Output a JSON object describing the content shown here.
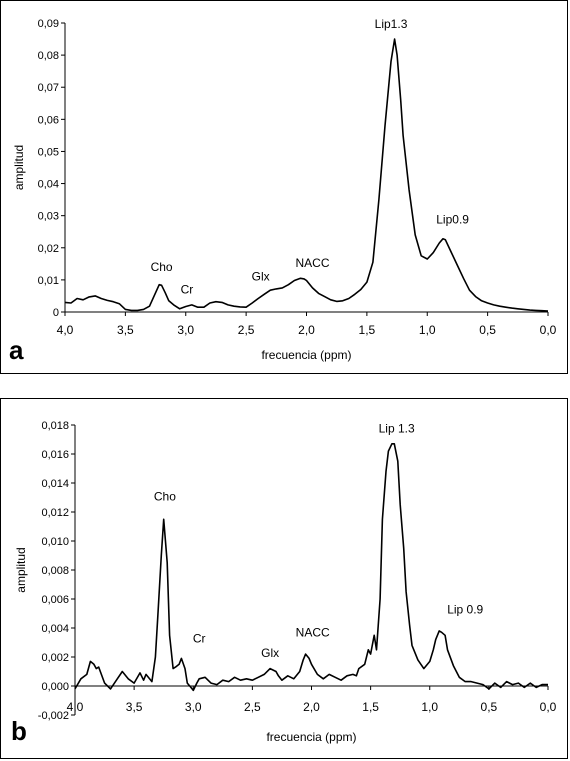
{
  "chart_data": [
    {
      "type": "line",
      "panel_label": "a",
      "xlabel": "frecuencia (ppm)",
      "ylabel": "amplitud",
      "xlim": [
        4.0,
        0.0
      ],
      "ylim": [
        0,
        0.09
      ],
      "x_ticks": [
        "4,0",
        "3,5",
        "3,0",
        "2,5",
        "2,0",
        "1,5",
        "1,0",
        "0,5",
        "0,0"
      ],
      "y_ticks": [
        "0",
        "0,01",
        "0,02",
        "0,03",
        "0,04",
        "0,05",
        "0,06",
        "0,07",
        "0,08",
        "0,09"
      ],
      "annotations": [
        {
          "text": "Cho",
          "x": 3.2,
          "y": 0.0128
        },
        {
          "text": "Cr",
          "x": 2.99,
          "y": 0.0058
        },
        {
          "text": "Glx",
          "x": 2.38,
          "y": 0.0098
        },
        {
          "text": "NACC",
          "x": 1.95,
          "y": 0.014
        },
        {
          "text": "Lip1.3",
          "x": 1.3,
          "y": 0.0885
        },
        {
          "text": "Lip0.9",
          "x": 0.79,
          "y": 0.0275
        }
      ],
      "series": [
        {
          "color": "#000000",
          "x": [
            4.0,
            3.95,
            3.9,
            3.85,
            3.8,
            3.75,
            3.7,
            3.65,
            3.6,
            3.55,
            3.5,
            3.45,
            3.4,
            3.35,
            3.3,
            3.25,
            3.22,
            3.2,
            3.17,
            3.14,
            3.1,
            3.05,
            3.0,
            2.95,
            2.9,
            2.85,
            2.8,
            2.75,
            2.7,
            2.65,
            2.6,
            2.55,
            2.5,
            2.45,
            2.4,
            2.35,
            2.3,
            2.25,
            2.2,
            2.15,
            2.1,
            2.05,
            2.02,
            2.0,
            1.95,
            1.9,
            1.85,
            1.8,
            1.75,
            1.7,
            1.65,
            1.6,
            1.55,
            1.5,
            1.45,
            1.4,
            1.35,
            1.3,
            1.27,
            1.25,
            1.22,
            1.2,
            1.15,
            1.1,
            1.05,
            1.0,
            0.95,
            0.9,
            0.87,
            0.85,
            0.8,
            0.75,
            0.7,
            0.65,
            0.6,
            0.55,
            0.5,
            0.45,
            0.4,
            0.35,
            0.3,
            0.25,
            0.2,
            0.15,
            0.1,
            0.05,
            0.0
          ],
          "y": [
            0.003,
            0.0028,
            0.0042,
            0.0038,
            0.0047,
            0.005,
            0.0042,
            0.0036,
            0.0032,
            0.0026,
            0.0008,
            0.0005,
            0.0005,
            0.0008,
            0.0018,
            0.006,
            0.0085,
            0.0083,
            0.006,
            0.0035,
            0.0022,
            0.001,
            0.0017,
            0.0022,
            0.0015,
            0.0015,
            0.0028,
            0.0032,
            0.003,
            0.0022,
            0.0018,
            0.0016,
            0.0015,
            0.0028,
            0.0042,
            0.0055,
            0.0068,
            0.0072,
            0.0075,
            0.0085,
            0.0098,
            0.0105,
            0.0103,
            0.0098,
            0.0075,
            0.0058,
            0.0048,
            0.0038,
            0.0033,
            0.0035,
            0.0042,
            0.0055,
            0.007,
            0.0093,
            0.0155,
            0.035,
            0.058,
            0.078,
            0.085,
            0.08,
            0.066,
            0.055,
            0.038,
            0.024,
            0.0175,
            0.0165,
            0.0185,
            0.0215,
            0.0228,
            0.0225,
            0.0185,
            0.0145,
            0.0105,
            0.0068,
            0.0048,
            0.0035,
            0.0028,
            0.0022,
            0.0018,
            0.0015,
            0.0012,
            0.001,
            0.0008,
            0.0006,
            0.0005,
            0.0004,
            0.0003
          ]
        }
      ]
    },
    {
      "type": "line",
      "panel_label": "b",
      "xlabel": "frecuencia (ppm)",
      "ylabel": "amplitud",
      "xlim": [
        4.0,
        0.0
      ],
      "ylim": [
        -0.002,
        0.018
      ],
      "x_ticks": [
        "4,0",
        "3,5",
        "3,0",
        "2,5",
        "2,0",
        "1,5",
        "1,0",
        "0,5",
        "0,0"
      ],
      "y_ticks": [
        "-0,002",
        "0,000",
        "0,002",
        "0,004",
        "0,006",
        "0,008",
        "0,010",
        "0,012",
        "0,014",
        "0,016",
        "0,018"
      ],
      "annotations": [
        {
          "text": "Cho",
          "x": 3.24,
          "y": 0.0128
        },
        {
          "text": "Cr",
          "x": 2.95,
          "y": 0.003
        },
        {
          "text": "Glx",
          "x": 2.35,
          "y": 0.002
        },
        {
          "text": "NACC",
          "x": 1.99,
          "y": 0.0034
        },
        {
          "text": "Lip 1.3",
          "x": 1.28,
          "y": 0.0175
        },
        {
          "text": "Lip 0.9",
          "x": 0.7,
          "y": 0.005
        }
      ],
      "series": [
        {
          "color": "#000000",
          "x": [
            4.0,
            3.95,
            3.9,
            3.87,
            3.84,
            3.82,
            3.8,
            3.75,
            3.7,
            3.65,
            3.6,
            3.55,
            3.5,
            3.45,
            3.42,
            3.4,
            3.35,
            3.32,
            3.3,
            3.27,
            3.25,
            3.22,
            3.2,
            3.17,
            3.15,
            3.12,
            3.1,
            3.07,
            3.05,
            3.02,
            3.0,
            2.97,
            2.95,
            2.9,
            2.85,
            2.8,
            2.75,
            2.7,
            2.65,
            2.6,
            2.55,
            2.5,
            2.45,
            2.4,
            2.35,
            2.3,
            2.28,
            2.25,
            2.2,
            2.15,
            2.1,
            2.07,
            2.05,
            2.02,
            2.0,
            1.95,
            1.9,
            1.85,
            1.8,
            1.75,
            1.7,
            1.65,
            1.62,
            1.6,
            1.55,
            1.52,
            1.5,
            1.47,
            1.45,
            1.42,
            1.4,
            1.37,
            1.35,
            1.32,
            1.3,
            1.27,
            1.25,
            1.22,
            1.2,
            1.17,
            1.15,
            1.1,
            1.05,
            1.0,
            0.97,
            0.95,
            0.92,
            0.9,
            0.87,
            0.85,
            0.8,
            0.75,
            0.7,
            0.65,
            0.6,
            0.55,
            0.5,
            0.45,
            0.4,
            0.35,
            0.3,
            0.25,
            0.2,
            0.15,
            0.1,
            0.05,
            0.0
          ],
          "y": [
            -0.0002,
            0.0005,
            0.0008,
            0.0017,
            0.0015,
            0.0012,
            0.0013,
            0.0002,
            -0.0002,
            0.0004,
            0.001,
            0.0005,
            0.0002,
            0.0009,
            0.0004,
            0.0008,
            0.0003,
            0.002,
            0.0048,
            0.009,
            0.0115,
            0.0085,
            0.0035,
            0.0012,
            0.0013,
            0.0015,
            0.0019,
            0.0012,
            0.0002,
            -0.0001,
            -0.0003,
            0.0002,
            0.0005,
            0.0006,
            0.0002,
            0.0001,
            0.0004,
            0.0003,
            0.0006,
            0.0004,
            0.0005,
            0.0004,
            0.0006,
            0.0008,
            0.0012,
            0.001,
            0.0007,
            0.0004,
            0.0007,
            0.0005,
            0.001,
            0.0018,
            0.0022,
            0.0019,
            0.0015,
            0.0008,
            0.0005,
            0.0008,
            0.0006,
            0.0004,
            0.0007,
            0.0008,
            0.0007,
            0.0012,
            0.0015,
            0.0025,
            0.0022,
            0.0035,
            0.0025,
            0.006,
            0.0115,
            0.0148,
            0.0162,
            0.0167,
            0.0167,
            0.0155,
            0.0125,
            0.0095,
            0.0065,
            0.0042,
            0.0028,
            0.0018,
            0.0012,
            0.0017,
            0.0025,
            0.0032,
            0.0038,
            0.0037,
            0.0035,
            0.0025,
            0.0014,
            0.0006,
            0.0003,
            0.0003,
            0.0002,
            0.0001,
            -0.0002,
            0.0002,
            -0.0001,
            0.0003,
            0.0001,
            0.0002,
            -0.0001,
            0.0002,
            -0.0001,
            0.0001,
            0.0001
          ]
        }
      ]
    }
  ]
}
